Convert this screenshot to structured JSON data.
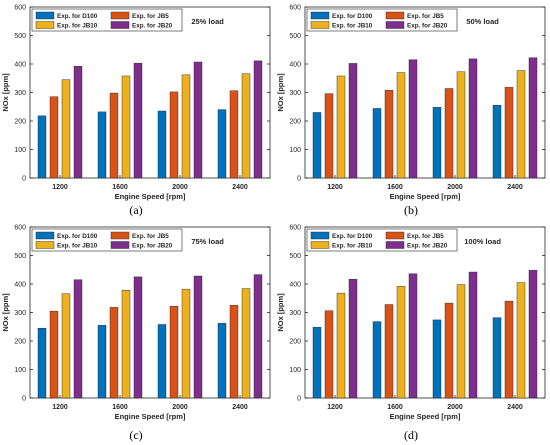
{
  "colors": {
    "D100": "#0072BD",
    "JB5": "#D95319",
    "JB10": "#EDB120",
    "JB20": "#7E2F8E"
  },
  "chart_data": [
    {
      "type": "bar",
      "caption": "(a)",
      "annotation": "25% load",
      "xlabel": "Engine Speed [rpm]",
      "ylabel": "NOx [ppm]",
      "ylim": [
        0,
        600
      ],
      "yticks": [
        "0",
        "100",
        "200",
        "300",
        "400",
        "500",
        "600"
      ],
      "categories": [
        "1200",
        "1600",
        "2000",
        "2400"
      ],
      "legend_position": "top-left",
      "series": [
        {
          "name": "Exp. for D100",
          "color_key": "D100",
          "values": [
            218,
            232,
            235,
            240
          ]
        },
        {
          "name": "Exp. for JB5",
          "color_key": "JB5",
          "values": [
            285,
            298,
            302,
            306
          ]
        },
        {
          "name": "Exp. for JB10",
          "color_key": "JB10",
          "values": [
            345,
            358,
            362,
            366
          ]
        },
        {
          "name": "Exp. for JB20",
          "color_key": "JB20",
          "values": [
            392,
            403,
            407,
            411
          ]
        }
      ]
    },
    {
      "type": "bar",
      "caption": "(b)",
      "annotation": "50% load",
      "xlabel": "Engine Speed [rpm]",
      "ylabel": "NOx [ppm]",
      "ylim": [
        0,
        600
      ],
      "yticks": [
        "0",
        "100",
        "200",
        "300",
        "400",
        "500",
        "600"
      ],
      "categories": [
        "1200",
        "1600",
        "2000",
        "2400"
      ],
      "legend_position": "top-left",
      "series": [
        {
          "name": "Exp. for D100",
          "color_key": "D100",
          "values": [
            230,
            244,
            248,
            255
          ]
        },
        {
          "name": "Exp. for JB5",
          "color_key": "JB5",
          "values": [
            296,
            308,
            314,
            318
          ]
        },
        {
          "name": "Exp. for JB10",
          "color_key": "JB10",
          "values": [
            358,
            370,
            373,
            377
          ]
        },
        {
          "name": "Exp. for JB20",
          "color_key": "JB20",
          "values": [
            402,
            415,
            418,
            422
          ]
        }
      ]
    },
    {
      "type": "bar",
      "caption": "(c)",
      "annotation": "75% load",
      "xlabel": "Engine Speed [rpm]",
      "ylabel": "NOx [ppm]",
      "ylim": [
        0,
        600
      ],
      "yticks": [
        "0",
        "100",
        "200",
        "300",
        "400",
        "500",
        "600"
      ],
      "categories": [
        "1200",
        "1600",
        "2000",
        "2400"
      ],
      "legend_position": "top-left",
      "series": [
        {
          "name": "Exp. for D100",
          "color_key": "D100",
          "values": [
            245,
            255,
            258,
            262
          ]
        },
        {
          "name": "Exp. for JB5",
          "color_key": "JB5",
          "values": [
            305,
            318,
            322,
            325
          ]
        },
        {
          "name": "Exp. for JB10",
          "color_key": "JB10",
          "values": [
            366,
            378,
            382,
            384
          ]
        },
        {
          "name": "Exp. for JB20",
          "color_key": "JB20",
          "values": [
            415,
            425,
            428,
            433
          ]
        }
      ]
    },
    {
      "type": "bar",
      "caption": "(d)",
      "annotation": "100% load",
      "xlabel": "Engine Speed [rpm]",
      "ylabel": "NOx [ppm]",
      "ylim": [
        0,
        600
      ],
      "yticks": [
        "0",
        "100",
        "200",
        "300",
        "400",
        "500",
        "600"
      ],
      "categories": [
        "1200",
        "1600",
        "2000",
        "2400"
      ],
      "legend_position": "top-left",
      "series": [
        {
          "name": "Exp. for D100",
          "color_key": "D100",
          "values": [
            248,
            268,
            274,
            282
          ]
        },
        {
          "name": "Exp. for JB5",
          "color_key": "JB5",
          "values": [
            306,
            328,
            333,
            340
          ]
        },
        {
          "name": "Exp. for JB10",
          "color_key": "JB10",
          "values": [
            368,
            392,
            398,
            405
          ]
        },
        {
          "name": "Exp. for JB20",
          "color_key": "JB20",
          "values": [
            417,
            436,
            442,
            448
          ]
        }
      ]
    }
  ]
}
